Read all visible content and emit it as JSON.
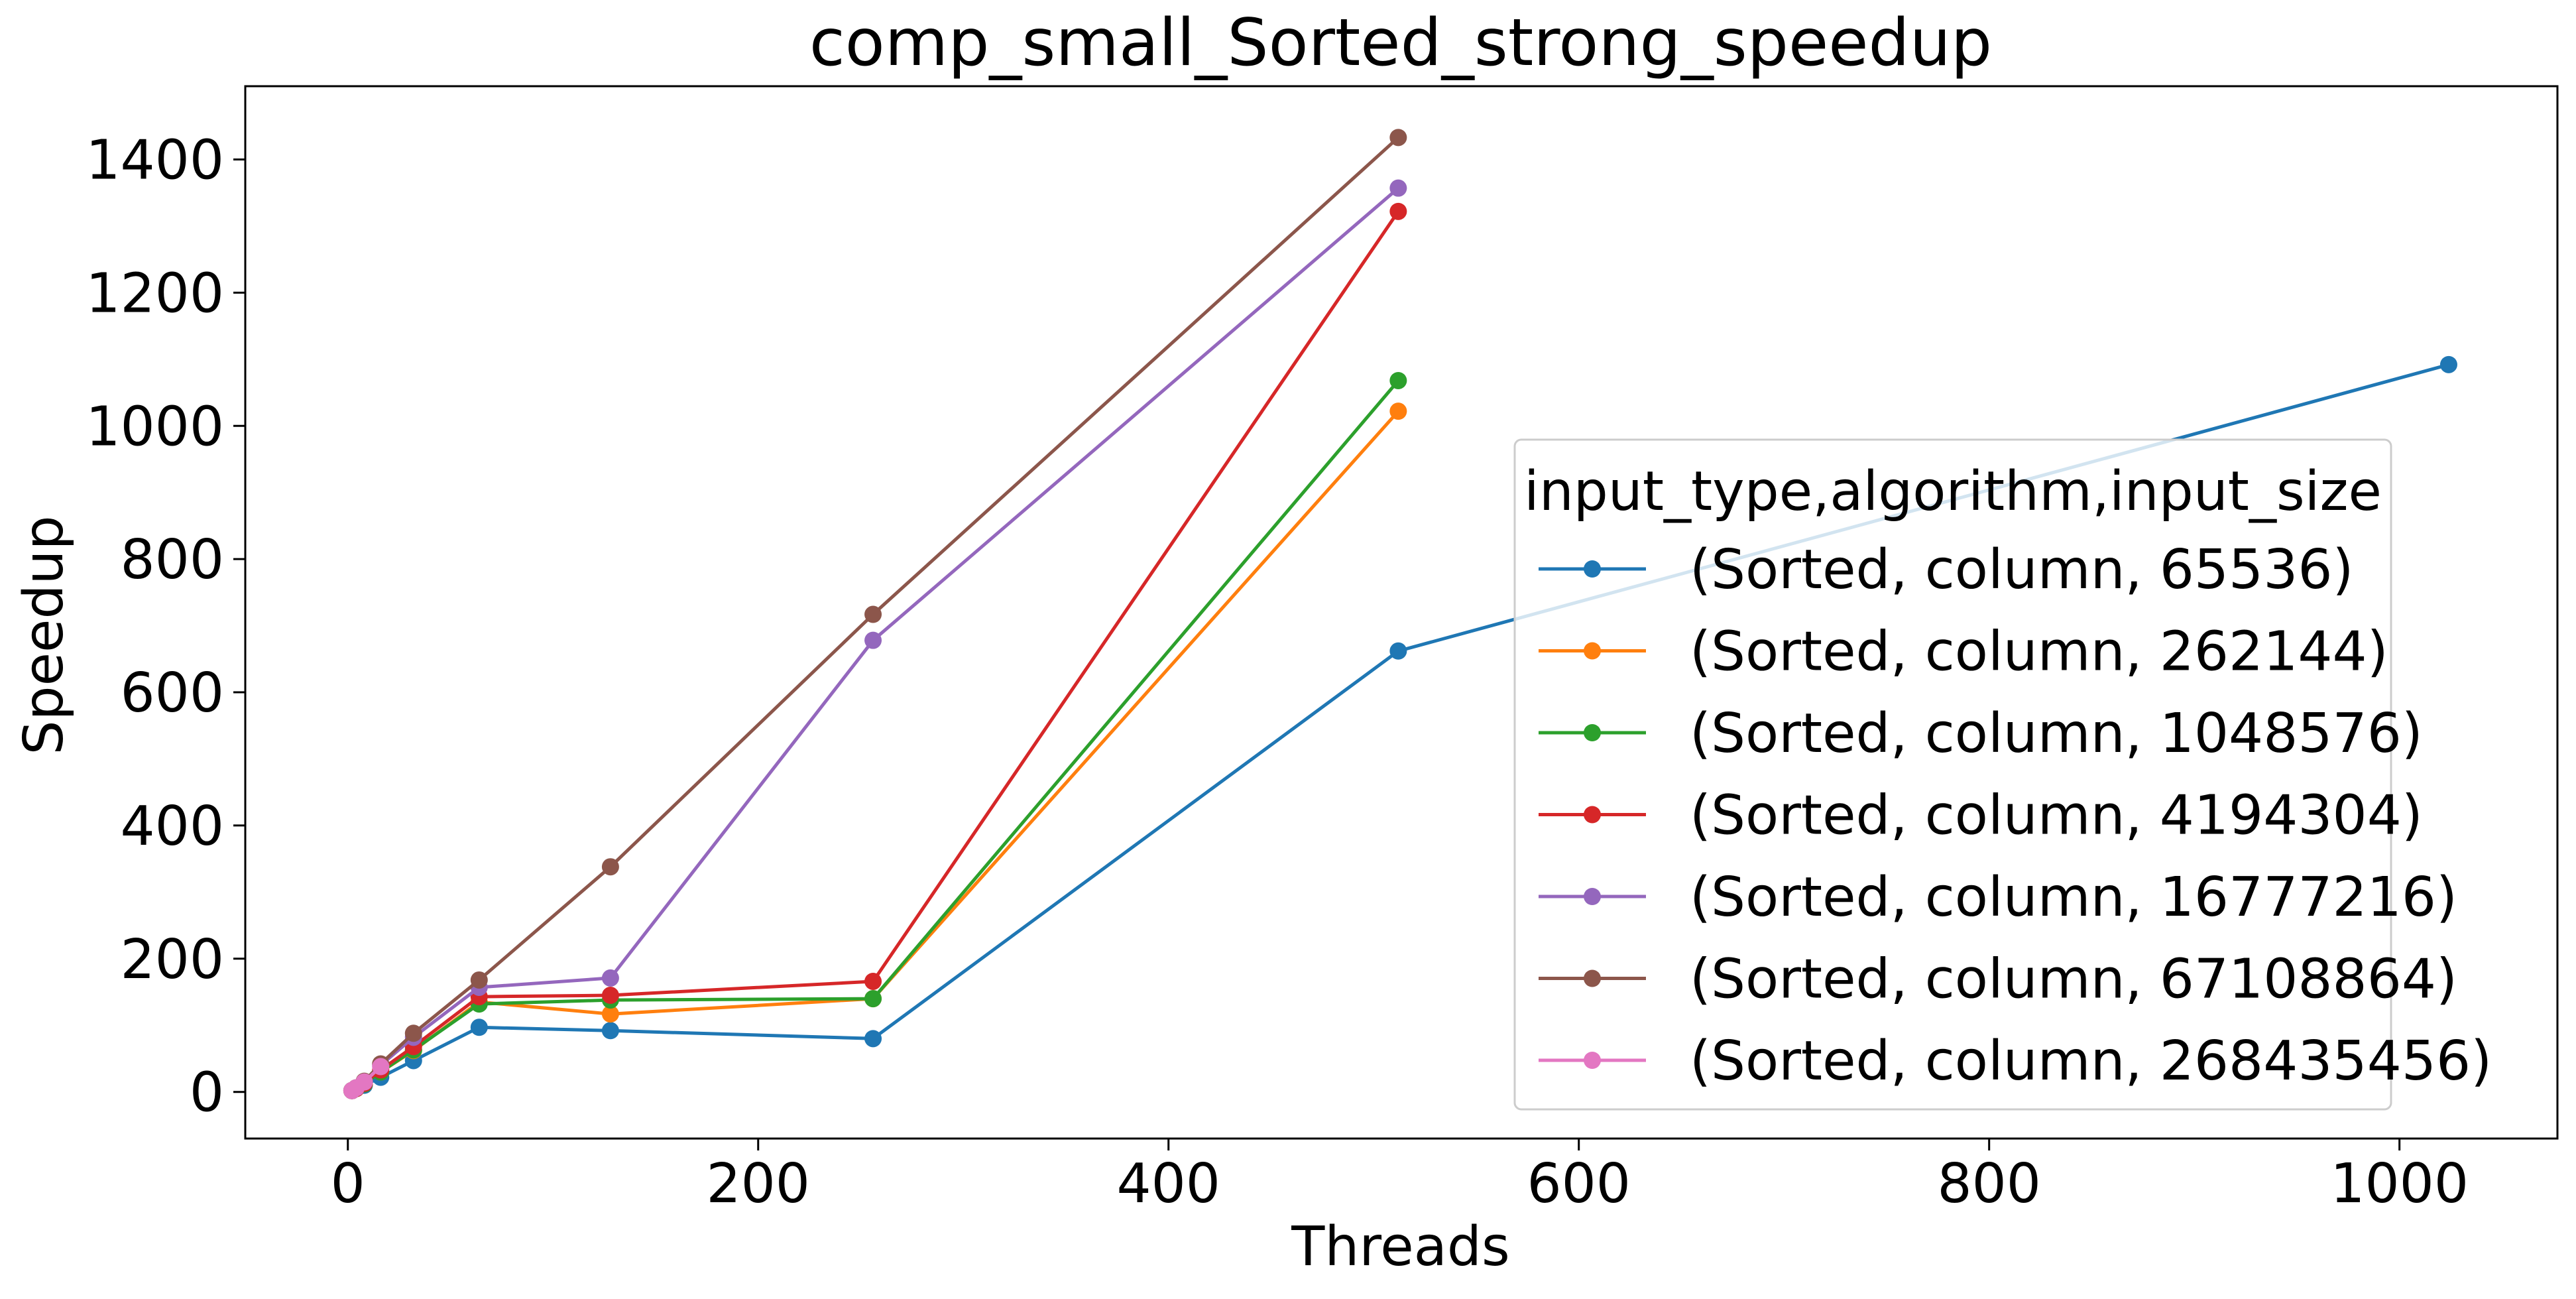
{
  "chart_data": {
    "type": "line",
    "title": "comp_small_Sorted_strong_speedup",
    "xlabel": "Threads",
    "ylabel": "Speedup",
    "xlim": [
      -50,
      1077
    ],
    "ylim": [
      -70,
      1510
    ],
    "xticks": [
      0,
      200,
      400,
      600,
      800,
      1000
    ],
    "yticks": [
      0,
      200,
      400,
      600,
      800,
      1000,
      1200,
      1400
    ],
    "grid": false,
    "legend": {
      "title": "input_type,algorithm,input_size",
      "placement": "center-right"
    },
    "series": [
      {
        "name": "(Sorted, column, 65536)",
        "color": "#1f77b4",
        "x": [
          2,
          4,
          8,
          16,
          32,
          64,
          128,
          256,
          512,
          1024
        ],
        "y": [
          2,
          5,
          10,
          22,
          47,
          97,
          92,
          80,
          662,
          1092
        ]
      },
      {
        "name": "(Sorted, column, 262144)",
        "color": "#ff7f0e",
        "x": [
          2,
          4,
          8,
          16,
          32,
          64,
          128,
          256,
          512
        ],
        "y": [
          2,
          5,
          12,
          30,
          62,
          135,
          117,
          140,
          1022
        ]
      },
      {
        "name": "(Sorted, column, 1048576)",
        "color": "#2ca02c",
        "x": [
          2,
          4,
          8,
          16,
          32,
          64,
          128,
          256,
          512
        ],
        "y": [
          2,
          5,
          12,
          30,
          63,
          132,
          138,
          140,
          1068
        ]
      },
      {
        "name": "(Sorted, column, 4194304)",
        "color": "#d62728",
        "x": [
          2,
          4,
          8,
          16,
          32,
          64,
          128,
          256,
          512
        ],
        "y": [
          2,
          5,
          13,
          33,
          68,
          143,
          145,
          166,
          1322
        ]
      },
      {
        "name": "(Sorted, column, 16777216)",
        "color": "#9467bd",
        "x": [
          2,
          4,
          8,
          16,
          32,
          64,
          128,
          256,
          512
        ],
        "y": [
          2,
          6,
          15,
          40,
          82,
          157,
          171,
          678,
          1357
        ]
      },
      {
        "name": "(Sorted, column, 67108864)",
        "color": "#8c564b",
        "x": [
          2,
          4,
          8,
          16,
          32,
          64,
          128,
          256,
          512
        ],
        "y": [
          2,
          6,
          16,
          42,
          88,
          168,
          338,
          717,
          1433
        ]
      },
      {
        "name": "(Sorted, column, 268435456)",
        "color": "#e377c2",
        "x": [
          2,
          4,
          8,
          16
        ],
        "y": [
          2,
          6,
          15,
          38
        ]
      }
    ]
  }
}
